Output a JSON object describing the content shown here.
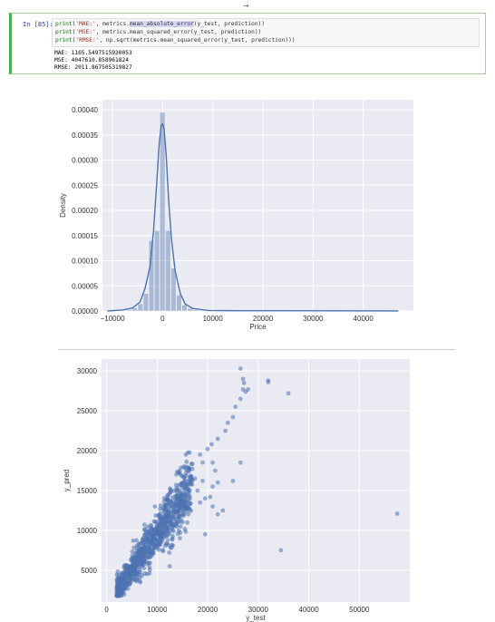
{
  "notebook": {
    "top_marker": "→",
    "cell_prompt": "In [85]:",
    "code": {
      "line1": {
        "fn": "print",
        "open": "(",
        "str": "'MAE:'",
        "mid": ", metrics.",
        "hl": "mean_absolute_error",
        "rest": "(y_test, prediction))"
      },
      "line2": {
        "fn": "print",
        "open": "(",
        "str": "'MSE:'",
        "rest": ", metrics.mean_squared_error(y_test, prediction))"
      },
      "line3": {
        "fn": "print",
        "open": "(",
        "str": "'RMSE:'",
        "rest": ", np.sqrt(metrics.mean_squared_error(y_test, prediction)))"
      }
    },
    "output": [
      "MAE: 1165.5497515930053",
      "MSE: 4047610.858961824",
      "RMSE: 2011.867505319827"
    ]
  },
  "colors": {
    "plot_bg": "#eaeaf2",
    "series": "#4c72b0",
    "grid": "#ffffff"
  },
  "chart_data": [
    {
      "type": "histogram+kde",
      "xlabel": "Price",
      "ylabel": "Density",
      "xlim": [
        -12000,
        50000
      ],
      "ylim": [
        0,
        0.00042
      ],
      "xticks": [
        "−10000",
        "0",
        "10000",
        "20000",
        "30000",
        "40000"
      ],
      "xtick_values": [
        -10000,
        0,
        10000,
        20000,
        30000,
        40000
      ],
      "yticks": [
        "0.00000",
        "0.00005",
        "0.00010",
        "0.00015",
        "0.00020",
        "0.00025",
        "0.00030",
        "0.00035",
        "0.00040"
      ],
      "ytick_values": [
        0,
        5e-05,
        0.0001,
        0.00015,
        0.0002,
        0.00025,
        0.0003,
        0.00035,
        0.0004
      ],
      "bin_width": 1100,
      "bins": [
        [
          -6600,
          2e-06
        ],
        [
          -5500,
          6e-06
        ],
        [
          -4400,
          1.4e-05
        ],
        [
          -3300,
          3.5e-05
        ],
        [
          -2200,
          0.00014
        ],
        [
          -1100,
          0.00016
        ],
        [
          0,
          0.000395
        ],
        [
          1100,
          0.00016
        ],
        [
          2200,
          8.5e-05
        ],
        [
          3300,
          3.2e-05
        ],
        [
          4400,
          1.2e-05
        ],
        [
          5500,
          5e-06
        ],
        [
          6600,
          2e-06
        ],
        [
          7700,
          1e-06
        ],
        [
          12000,
          5e-07
        ],
        [
          25000,
          4e-07
        ],
        [
          44000,
          4e-07
        ]
      ],
      "kde": [
        [
          -11000,
          0
        ],
        [
          -8000,
          2e-06
        ],
        [
          -6000,
          6e-06
        ],
        [
          -4500,
          1.8e-05
        ],
        [
          -3500,
          4.5e-05
        ],
        [
          -2500,
          9e-05
        ],
        [
          -1800,
          0.00016
        ],
        [
          -1200,
          0.00025
        ],
        [
          -700,
          0.00033
        ],
        [
          -300,
          0.000368
        ],
        [
          0,
          0.000372
        ],
        [
          300,
          0.000362
        ],
        [
          700,
          0.00031
        ],
        [
          1200,
          0.00022
        ],
        [
          1800,
          0.00014
        ],
        [
          2500,
          8e-05
        ],
        [
          3500,
          3.5e-05
        ],
        [
          4500,
          1.4e-05
        ],
        [
          6000,
          5e-06
        ],
        [
          9000,
          1e-06
        ],
        [
          15000,
          5e-07
        ],
        [
          25000,
          5e-07
        ],
        [
          35000,
          4e-07
        ],
        [
          47000,
          2e-07
        ]
      ]
    },
    {
      "type": "scatter",
      "xlabel": "y_test",
      "ylabel": "y_pred",
      "xlim": [
        -1000,
        60000
      ],
      "ylim": [
        1000,
        31500
      ],
      "xticks": [
        "0",
        "10000",
        "20000",
        "30000",
        "40000",
        "50000"
      ],
      "xtick_values": [
        0,
        10000,
        20000,
        30000,
        40000,
        50000
      ],
      "yticks": [
        "5000",
        "10000",
        "15000",
        "20000",
        "25000",
        "30000"
      ],
      "ytick_values": [
        5000,
        10000,
        15000,
        20000,
        25000,
        30000
      ],
      "cluster": {
        "count": 900,
        "x_range": [
          2000,
          17000
        ],
        "slope": 0.88,
        "intercept": 700,
        "noise": 1300,
        "seed": 7
      },
      "outliers": [
        [
          26500,
          30300
        ],
        [
          27000,
          29000
        ],
        [
          27200,
          28500
        ],
        [
          27000,
          27700
        ],
        [
          27500,
          27400
        ],
        [
          28000,
          27700
        ],
        [
          26500,
          26500
        ],
        [
          25500,
          25500
        ],
        [
          25000,
          24200
        ],
        [
          24000,
          23500
        ],
        [
          23500,
          22500
        ],
        [
          22000,
          21500
        ],
        [
          20800,
          20800
        ],
        [
          20000,
          20200
        ],
        [
          18500,
          19500
        ],
        [
          19000,
          18500
        ],
        [
          21000,
          18500
        ],
        [
          21500,
          17500
        ],
        [
          26500,
          18500
        ],
        [
          22000,
          16000
        ],
        [
          19000,
          16200
        ],
        [
          25000,
          16200
        ],
        [
          21000,
          15500
        ],
        [
          18000,
          15000
        ],
        [
          19500,
          14000
        ],
        [
          20500,
          14200
        ],
        [
          21000,
          13000
        ],
        [
          22000,
          12000
        ],
        [
          23000,
          12500
        ],
        [
          18500,
          13500
        ],
        [
          17500,
          16500
        ],
        [
          16000,
          17500
        ],
        [
          15500,
          18000
        ],
        [
          19500,
          9500
        ],
        [
          14500,
          9000
        ],
        [
          32000,
          28800
        ],
        [
          32000,
          28600
        ],
        [
          36000,
          27200
        ],
        [
          34500,
          7500
        ],
        [
          57500,
          12100
        ],
        [
          8000,
          4500
        ],
        [
          6000,
          3800
        ],
        [
          12500,
          5500
        ]
      ]
    }
  ]
}
